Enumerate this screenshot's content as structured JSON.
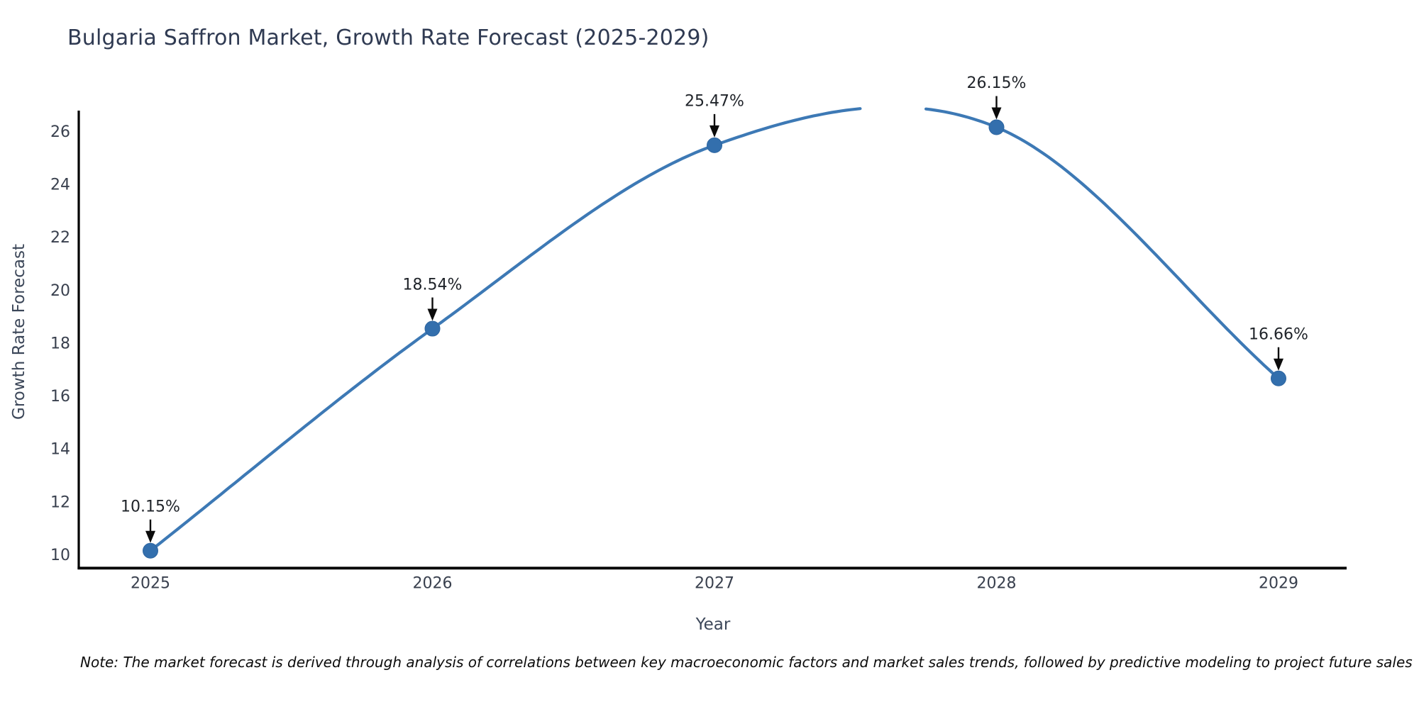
{
  "page": {
    "background": "#ffffff"
  },
  "chart_data": {
    "type": "line",
    "title": "Bulgaria Saffron Market, Growth Rate Forecast (2025-2029)",
    "xlabel": "Year",
    "ylabel": "Growth Rate Forecast",
    "categories": [
      "2025",
      "2026",
      "2027",
      "2028",
      "2029"
    ],
    "x": [
      2025,
      2026,
      2027,
      2028,
      2029
    ],
    "values": [
      10.15,
      18.54,
      25.47,
      26.15,
      16.66
    ],
    "point_labels": [
      "10.15%",
      "18.54%",
      "25.47%",
      "26.15%",
      "16.66%"
    ],
    "yticks": [
      10,
      12,
      14,
      16,
      18,
      20,
      22,
      24,
      26
    ],
    "ylim": [
      9.5,
      26.86
    ],
    "xlim": [
      2024.75,
      2029.24
    ],
    "grid": false,
    "legend": false,
    "smooth": true,
    "annotation_style": "down-arrow",
    "colors": {
      "line": "#3d79b5",
      "marker": "#336fad",
      "marker_edge": "#2d65a0",
      "annotation_text": "#1f2329",
      "arrow": "#0b0b0b",
      "axis": "#000000",
      "tick_label": "#39404e",
      "axis_label": "#3c4759",
      "title": "#2f3a52"
    }
  },
  "footnote": "Note: The market forecast is derived through analysis of correlations between key macroeconomic factors and market sales trends, followed by predictive modeling to project future sales"
}
